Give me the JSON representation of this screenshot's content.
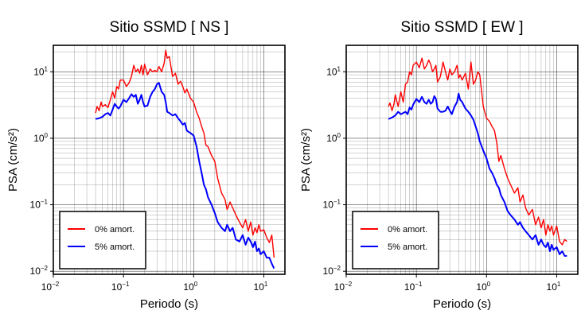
{
  "chart_data": [
    {
      "type": "line",
      "title": "Sitio SSMD [ NS ]",
      "xlabel": "Periodo (s)",
      "ylabel": "PSA (cm/s²)",
      "xscale": "log",
      "yscale": "log",
      "xlim": [
        0.01,
        20
      ],
      "ylim": [
        0.009,
        25
      ],
      "grid": true,
      "legend_position": "bottom-left",
      "xticks": [
        {
          "base": "10",
          "exp": "−2"
        },
        {
          "base": "10",
          "exp": "−1"
        },
        {
          "base": "10",
          "exp": "0"
        },
        {
          "base": "10",
          "exp": "1"
        }
      ],
      "yticks": [
        {
          "base": "10",
          "exp": "−2"
        },
        {
          "base": "10",
          "exp": "−1"
        },
        {
          "base": "10",
          "exp": "0"
        },
        {
          "base": "10",
          "exp": "1"
        }
      ],
      "series": [
        {
          "name": "0% amort.",
          "color": "#ff0000",
          "x": [
            0.04,
            0.042,
            0.045,
            0.048,
            0.05,
            0.055,
            0.06,
            0.065,
            0.07,
            0.075,
            0.08,
            0.085,
            0.09,
            0.1,
            0.11,
            0.12,
            0.13,
            0.14,
            0.15,
            0.16,
            0.17,
            0.18,
            0.19,
            0.2,
            0.22,
            0.24,
            0.26,
            0.28,
            0.3,
            0.32,
            0.35,
            0.38,
            0.4,
            0.42,
            0.45,
            0.5,
            0.55,
            0.6,
            0.65,
            0.7,
            0.75,
            0.8,
            0.9,
            1.0,
            1.1,
            1.2,
            1.3,
            1.4,
            1.5,
            1.6,
            1.8,
            2.0,
            2.2,
            2.5,
            2.8,
            3.0,
            3.3,
            3.6,
            4.0,
            4.5,
            5.0,
            5.5,
            6.0,
            6.5,
            7.0,
            7.5,
            8.0,
            8.5,
            9.0,
            10,
            11,
            12,
            13,
            14
          ],
          "y": [
            2.4,
            3.0,
            2.6,
            3.5,
            3.0,
            3.2,
            2.9,
            3.8,
            5.0,
            4.0,
            6.0,
            5.5,
            7.5,
            7.5,
            6.0,
            6.8,
            8.5,
            12.5,
            10.0,
            11.0,
            9.5,
            12.5,
            9.0,
            13.0,
            9.0,
            11.0,
            10.0,
            10.5,
            10.0,
            12.0,
            10.0,
            13.5,
            21.0,
            16.0,
            17.0,
            8.5,
            9.5,
            6.5,
            7.2,
            6.0,
            4.8,
            5.5,
            4.0,
            3.5,
            2.5,
            2.0,
            1.5,
            1.2,
            0.78,
            0.75,
            0.55,
            0.45,
            0.25,
            0.15,
            0.12,
            0.085,
            0.11,
            0.09,
            0.07,
            0.055,
            0.045,
            0.06,
            0.04,
            0.055,
            0.035,
            0.045,
            0.038,
            0.05,
            0.04,
            0.042,
            0.032,
            0.027,
            0.035,
            0.016
          ]
        },
        {
          "name": "5% amort.",
          "color": "#0000ff",
          "x": [
            0.04,
            0.045,
            0.05,
            0.055,
            0.06,
            0.065,
            0.07,
            0.075,
            0.08,
            0.085,
            0.09,
            0.1,
            0.11,
            0.12,
            0.13,
            0.14,
            0.15,
            0.16,
            0.17,
            0.18,
            0.19,
            0.2,
            0.22,
            0.24,
            0.26,
            0.28,
            0.3,
            0.32,
            0.35,
            0.38,
            0.4,
            0.42,
            0.45,
            0.5,
            0.55,
            0.6,
            0.65,
            0.7,
            0.75,
            0.8,
            0.9,
            1.0,
            1.1,
            1.2,
            1.3,
            1.4,
            1.5,
            1.6,
            1.8,
            2.0,
            2.2,
            2.5,
            2.8,
            3.0,
            3.3,
            3.6,
            4.0,
            4.5,
            5.0,
            5.5,
            6.0,
            6.5,
            7.0,
            7.5,
            8.0,
            8.5,
            9.0,
            10,
            11,
            12,
            13,
            14
          ],
          "y": [
            1.95,
            2.0,
            2.1,
            2.3,
            2.4,
            2.2,
            2.7,
            3.3,
            3.0,
            2.8,
            3.0,
            3.8,
            3.5,
            4.0,
            4.6,
            4.2,
            4.5,
            3.3,
            3.8,
            4.5,
            3.5,
            3.0,
            3.1,
            4.2,
            5.0,
            5.5,
            6.5,
            6.8,
            5.0,
            4.5,
            3.5,
            2.5,
            2.4,
            2.2,
            2.3,
            2.0,
            1.8,
            1.6,
            1.7,
            1.3,
            1.2,
            1.1,
            0.75,
            0.45,
            0.3,
            0.2,
            0.17,
            0.13,
            0.1,
            0.075,
            0.055,
            0.045,
            0.04,
            0.05,
            0.04,
            0.045,
            0.03,
            0.028,
            0.035,
            0.025,
            0.032,
            0.028,
            0.023,
            0.028,
            0.02,
            0.022,
            0.018,
            0.02,
            0.016,
            0.016,
            0.013,
            0.011
          ]
        }
      ]
    },
    {
      "type": "line",
      "title": "Sitio SSMD [ EW ]",
      "xlabel": "Periodo (s)",
      "ylabel": "PSA (cm/s²)",
      "xscale": "log",
      "yscale": "log",
      "xlim": [
        0.01,
        20
      ],
      "ylim": [
        0.009,
        25
      ],
      "grid": true,
      "legend_position": "bottom-left",
      "xticks": [
        {
          "base": "10",
          "exp": "−2"
        },
        {
          "base": "10",
          "exp": "−1"
        },
        {
          "base": "10",
          "exp": "0"
        },
        {
          "base": "10",
          "exp": "1"
        }
      ],
      "yticks": [
        {
          "base": "10",
          "exp": "−2"
        },
        {
          "base": "10",
          "exp": "−1"
        },
        {
          "base": "10",
          "exp": "0"
        },
        {
          "base": "10",
          "exp": "1"
        }
      ],
      "series": [
        {
          "name": "0% amort.",
          "color": "#ff0000",
          "x": [
            0.04,
            0.042,
            0.045,
            0.048,
            0.05,
            0.055,
            0.06,
            0.065,
            0.07,
            0.075,
            0.08,
            0.085,
            0.09,
            0.1,
            0.11,
            0.12,
            0.13,
            0.14,
            0.15,
            0.16,
            0.17,
            0.18,
            0.19,
            0.2,
            0.22,
            0.24,
            0.26,
            0.28,
            0.3,
            0.32,
            0.35,
            0.38,
            0.4,
            0.42,
            0.45,
            0.5,
            0.55,
            0.6,
            0.65,
            0.7,
            0.75,
            0.8,
            0.9,
            1.0,
            1.1,
            1.2,
            1.3,
            1.4,
            1.5,
            1.6,
            1.8,
            2.0,
            2.2,
            2.5,
            2.8,
            3.0,
            3.3,
            3.6,
            4.0,
            4.5,
            5.0,
            5.5,
            6.0,
            6.5,
            7.0,
            7.5,
            8.0,
            8.5,
            9.0,
            10,
            11,
            12,
            13,
            14
          ],
          "y": [
            3.0,
            3.4,
            2.6,
            3.3,
            4.5,
            3.0,
            5.0,
            3.5,
            6.5,
            7.0,
            10.0,
            9.0,
            12.5,
            14.0,
            11.5,
            16.0,
            11.0,
            12.5,
            15.0,
            13.0,
            10.0,
            11.0,
            12.5,
            7.0,
            8.5,
            14.0,
            10.0,
            7.5,
            11.0,
            9.0,
            10.0,
            12.5,
            8.0,
            9.0,
            7.5,
            9.5,
            5.5,
            14.0,
            6.5,
            7.5,
            10.0,
            9.0,
            3.0,
            2.0,
            1.8,
            1.5,
            1.3,
            0.85,
            0.45,
            0.55,
            0.35,
            0.25,
            0.2,
            0.15,
            0.18,
            0.11,
            0.14,
            0.09,
            0.07,
            0.085,
            0.05,
            0.065,
            0.045,
            0.06,
            0.035,
            0.05,
            0.04,
            0.048,
            0.035,
            0.048,
            0.028,
            0.025,
            0.03,
            0.028
          ]
        },
        {
          "name": "5% amort.",
          "color": "#0000ff",
          "x": [
            0.04,
            0.045,
            0.05,
            0.055,
            0.06,
            0.065,
            0.07,
            0.075,
            0.08,
            0.085,
            0.09,
            0.1,
            0.11,
            0.12,
            0.13,
            0.14,
            0.15,
            0.16,
            0.17,
            0.18,
            0.19,
            0.2,
            0.22,
            0.24,
            0.26,
            0.28,
            0.3,
            0.32,
            0.35,
            0.38,
            0.4,
            0.42,
            0.45,
            0.5,
            0.55,
            0.6,
            0.65,
            0.7,
            0.75,
            0.8,
            0.9,
            1.0,
            1.1,
            1.2,
            1.3,
            1.4,
            1.5,
            1.6,
            1.8,
            2.0,
            2.2,
            2.5,
            2.8,
            3.0,
            3.3,
            3.6,
            4.0,
            4.5,
            5.0,
            5.5,
            6.0,
            6.5,
            7.0,
            7.5,
            8.0,
            8.5,
            9.0,
            10,
            11,
            12,
            13,
            14
          ],
          "y": [
            1.95,
            2.05,
            2.2,
            2.5,
            2.3,
            2.4,
            2.5,
            2.3,
            2.9,
            2.7,
            3.2,
            3.9,
            3.5,
            4.2,
            3.5,
            3.3,
            3.8,
            3.3,
            3.5,
            4.3,
            3.9,
            2.8,
            2.5,
            2.5,
            2.6,
            3.0,
            2.6,
            2.3,
            3.0,
            3.5,
            4.7,
            3.8,
            3.5,
            2.8,
            2.5,
            2.2,
            1.9,
            1.5,
            1.2,
            0.9,
            0.65,
            0.5,
            0.35,
            0.3,
            0.25,
            0.2,
            0.18,
            0.14,
            0.11,
            0.08,
            0.07,
            0.06,
            0.05,
            0.055,
            0.045,
            0.04,
            0.035,
            0.03,
            0.035,
            0.025,
            0.03,
            0.025,
            0.023,
            0.027,
            0.02,
            0.025,
            0.021,
            0.023,
            0.018,
            0.02,
            0.017,
            0.017
          ]
        }
      ]
    }
  ]
}
